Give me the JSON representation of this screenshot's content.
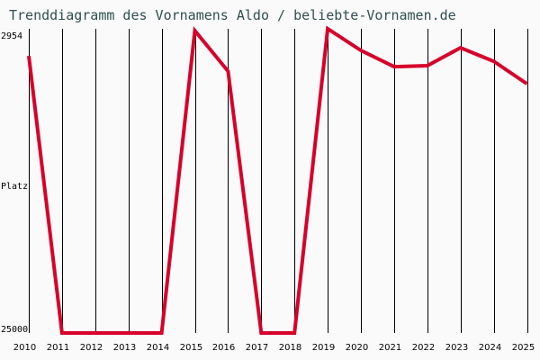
{
  "title": "Trenddiagramm des Vornamens Aldo / beliebte-Vornamen.de",
  "y_axis": {
    "top_label": "2954",
    "mid_label": "Platz",
    "bottom_label": "25000"
  },
  "line_color": "#d7002a",
  "chart_data": {
    "type": "line",
    "title": "Trenddiagramm des Vornamens Aldo / beliebte-Vornamen.de",
    "xlabel": "",
    "ylabel": "Platz",
    "ylim": [
      25000,
      2954
    ],
    "y_inverted": true,
    "grid": {
      "vertical": true,
      "horizontal": false
    },
    "categories": [
      "2010",
      "2011",
      "2012",
      "2013",
      "2014",
      "2015",
      "2016",
      "2017",
      "2018",
      "2019",
      "2020",
      "2021",
      "2022",
      "2023",
      "2024",
      "2025"
    ],
    "series": [
      {
        "name": "Aldo",
        "values": [
          4920,
          25000,
          25000,
          25000,
          25000,
          3090,
          6030,
          25000,
          25000,
          2954,
          4520,
          5700,
          5630,
          4330,
          5310,
          6940
        ]
      }
    ]
  }
}
